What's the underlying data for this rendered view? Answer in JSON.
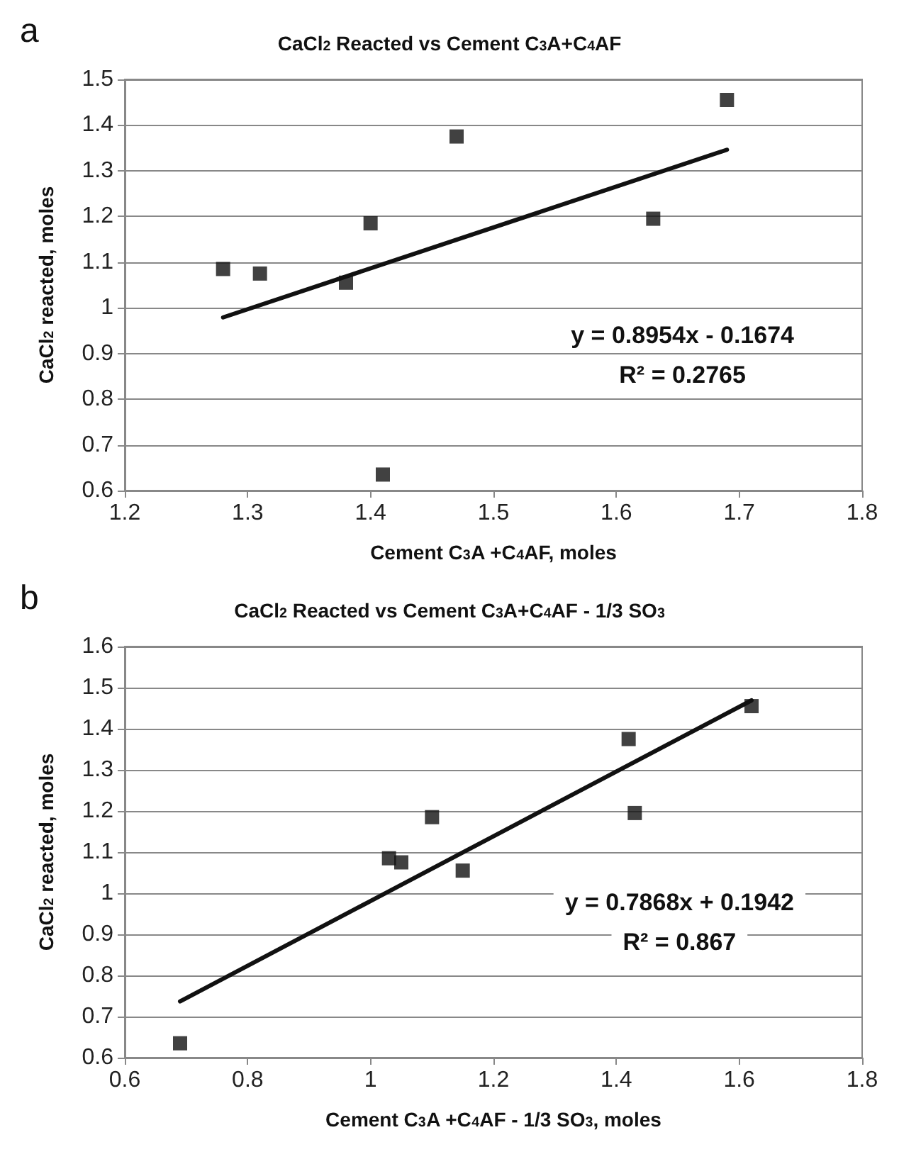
{
  "chart_data": [
    {
      "type": "scatter",
      "title": "CaCl$_{2}$ Reacted vs Cement C$_{3}$A+C$_{4}$AF",
      "xlabel": "Cement C$_{3}$A +C$_{4}$AF, moles",
      "ylabel": "CaCl$_{2}$ reacted, moles",
      "annotations": [
        "a",
        "y = 0.8954x - 0.1674",
        "R² = 0.2765"
      ],
      "xlim": [
        1.2,
        1.8
      ],
      "xticks": [
        1.2,
        1.3,
        1.4,
        1.5,
        1.6,
        1.7,
        1.8
      ],
      "ylim": [
        0.6,
        1.5
      ],
      "yticks": [
        0.6,
        0.7,
        0.8,
        0.9,
        1,
        1.1,
        1.2,
        1.3,
        1.4,
        1.5
      ],
      "grid": "y",
      "marker": "square",
      "series": [
        {
          "color": "#111111",
          "x": [
            1.28,
            1.31,
            1.38,
            1.4,
            1.41,
            1.47,
            1.63,
            1.69
          ],
          "values": [
            1.085,
            1.075,
            1.055,
            1.185,
            0.635,
            1.375,
            1.195,
            1.455
          ]
        },
        {
          "type": "line",
          "color": "#111111",
          "marker": "none",
          "x": [
            1.28,
            1.69
          ],
          "values": [
            0.979,
            1.346
          ]
        }
      ]
    },
    {
      "type": "scatter",
      "title": "CaCl$_{2}$ Reacted vs Cement C$_{3}$A+C$_{4}$AF - 1/3 SO$_{3}$",
      "xlabel": "Cement C$_{3}$A +C$_{4}$AF - 1/3 SO$_{3}$, moles",
      "ylabel": "CaCl$_{2}$ reacted, moles",
      "annotations": [
        "b",
        "y = 0.7868x + 0.1942",
        "R² = 0.867"
      ],
      "xlim": [
        0.6,
        1.8
      ],
      "xticks": [
        0.6,
        0.8,
        1,
        1.2,
        1.4,
        1.6,
        1.8
      ],
      "ylim": [
        0.6,
        1.6
      ],
      "yticks": [
        0.6,
        0.7,
        0.8,
        0.9,
        1,
        1.1,
        1.2,
        1.3,
        1.4,
        1.5,
        1.6
      ],
      "grid": "y",
      "marker": "square",
      "series": [
        {
          "color": "#111111",
          "x": [
            0.69,
            1.03,
            1.05,
            1.1,
            1.15,
            1.42,
            1.43,
            1.62
          ],
          "values": [
            0.635,
            1.085,
            1.075,
            1.185,
            1.055,
            1.375,
            1.195,
            1.455
          ]
        },
        {
          "type": "line",
          "color": "#111111",
          "marker": "none",
          "x": [
            0.69,
            1.62
          ],
          "values": [
            0.737,
            1.469
          ]
        }
      ]
    }
  ]
}
